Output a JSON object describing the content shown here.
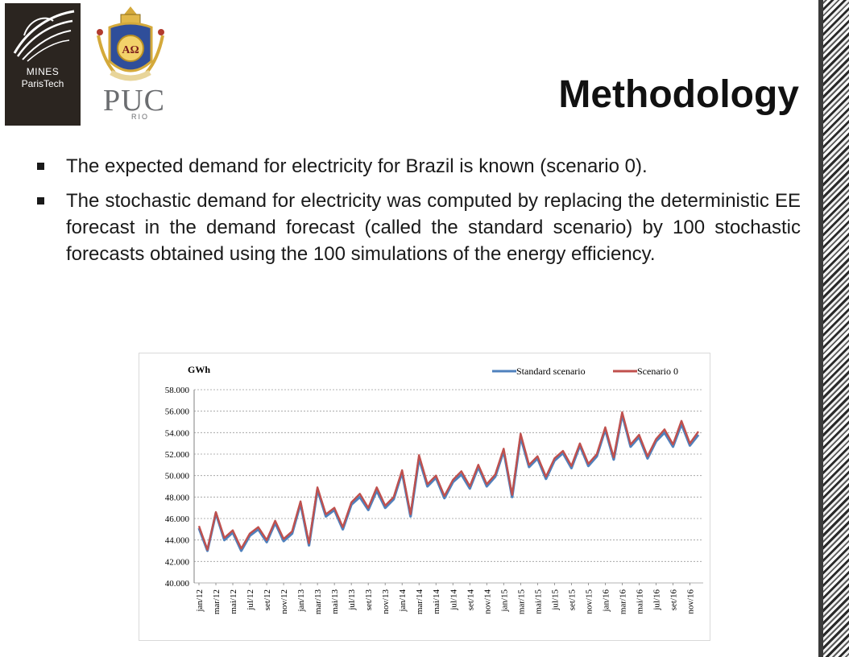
{
  "logos": {
    "mines_line1": "MINES",
    "mines_line2": "ParisTech",
    "puc_name": "PUC",
    "puc_sub": "RIO",
    "crest_letters": "AΩ"
  },
  "slide": {
    "title": "Methodology",
    "bullets": [
      "The expected demand for electricity for Brazil is known (scenario 0).",
      "The stochastic demand for electricity was computed by replacing the deterministic EE forecast in the demand forecast (called the standard scenario) by 100 stochastic forecasts obtained using the 100 simulations of the energy efficiency."
    ]
  },
  "colors": {
    "standard": "#4f81bd",
    "scenario0": "#c0504d"
  },
  "chart_data": {
    "type": "line",
    "ylabel": "GWh",
    "ylim": [
      40000,
      58000
    ],
    "ytick_labels": [
      "58.000",
      "56.000",
      "54.000",
      "52.000",
      "50.000",
      "48.000",
      "46.000",
      "44.000",
      "42.000",
      "40.000"
    ],
    "grid": true,
    "legend": "top-right",
    "x_tick_labels": [
      "jan/12",
      "mar/12",
      "mai/12",
      "jul/12",
      "set/12",
      "nov/12",
      "jan/13",
      "mar/13",
      "mai/13",
      "jul/13",
      "set/13",
      "nov/13",
      "jan/14",
      "mar/14",
      "mai/14",
      "jul/14",
      "set/14",
      "nov/14",
      "jan/15",
      "mar/15",
      "mai/15",
      "jul/15",
      "set/15",
      "nov/15",
      "jan/16",
      "mar/16",
      "mai/16",
      "jul/16",
      "set/16",
      "nov/16"
    ],
    "series": [
      {
        "name": "Standard scenario",
        "values": [
          45100,
          43000,
          46500,
          44000,
          44700,
          43000,
          44400,
          45000,
          43800,
          45600,
          43900,
          44600,
          47400,
          43500,
          48700,
          46200,
          46800,
          45000,
          47300,
          48000,
          46800,
          48600,
          47000,
          47800,
          50300,
          46200,
          51600,
          49000,
          49800,
          47900,
          49400,
          50100,
          48800,
          50800,
          49000,
          49900,
          52300,
          48000,
          53600,
          50800,
          51600,
          49700,
          51400,
          52100,
          50700,
          52800,
          50900,
          51800,
          54300,
          51500,
          55700,
          52700,
          53600,
          51600,
          53200,
          54000,
          52700,
          54800,
          52800,
          53800
        ]
      },
      {
        "name": "Scenario 0",
        "values": [
          45300,
          43100,
          46600,
          44200,
          44900,
          43200,
          44600,
          45200,
          44000,
          45800,
          44100,
          44800,
          47600,
          43700,
          48900,
          46400,
          47000,
          45200,
          47500,
          48300,
          47000,
          48900,
          47200,
          48000,
          50500,
          46400,
          51900,
          49200,
          50000,
          48100,
          49600,
          50400,
          49000,
          51000,
          49200,
          50100,
          52500,
          48200,
          53900,
          51000,
          51800,
          49900,
          51600,
          52300,
          50900,
          53000,
          51100,
          52000,
          54500,
          51700,
          55900,
          52900,
          53800,
          51800,
          53400,
          54300,
          52900,
          55100,
          53000,
          54100
        ]
      }
    ]
  }
}
